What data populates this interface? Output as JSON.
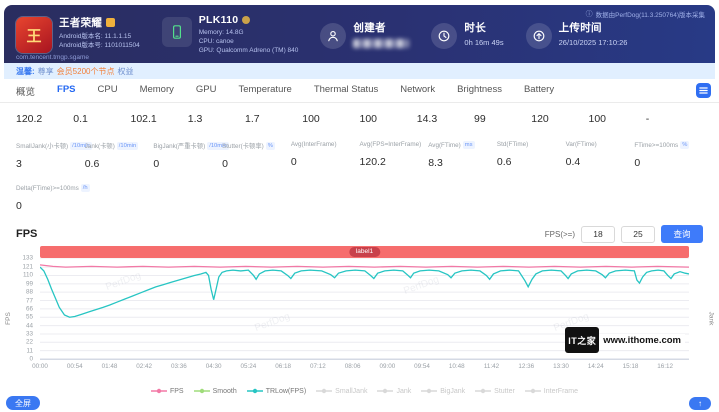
{
  "header": {
    "game": {
      "icon_glyph": "王",
      "title": "王者荣耀",
      "version_line1": "Android版本名: 11.1.1.15",
      "version_line2": "Android版本号: 1101011504",
      "package": "com.tencent.tmgp.sgame"
    },
    "device": {
      "model": "PLK110",
      "memory": "Memory: 14.8G",
      "cpu": "CPU: canoe",
      "gpu": "GPU: Qualcomm Adreno (TM) 840"
    },
    "creator_label": "创建者",
    "duration_label": "时长",
    "duration_value": "0h 16m 49s",
    "upload_label": "上传时间",
    "upload_value": "26/10/2025 17:10:26",
    "collector_note": "数据由PerfDog(11.3.250764)版本采集"
  },
  "notice": {
    "prefix": "温馨:",
    "text": "尊享",
    "highlight": "会员5200个节点",
    "suffix": "权益"
  },
  "tabs": {
    "items": [
      "概览",
      "FPS",
      "CPU",
      "Memory",
      "GPU",
      "Temperature",
      "Thermal Status",
      "Network",
      "Brightness",
      "Battery"
    ],
    "active_index": 1
  },
  "stats": {
    "row1": [
      "120.2",
      "0.1",
      "102.1",
      "1.3",
      "1.7",
      "100",
      "100",
      "14.3",
      "99",
      "120",
      "100",
      "-"
    ],
    "row2": [
      {
        "label": "SmallJank(小卡顿)",
        "unit": "/10min",
        "value": "3"
      },
      {
        "label": "Jank(卡顿)",
        "unit": "/10min",
        "value": "0.6"
      },
      {
        "label": "BigJank(严重卡顿)",
        "unit": "/10min",
        "value": "0"
      },
      {
        "label": "Stutter(卡顿率)",
        "unit": "%",
        "value": "0"
      },
      {
        "label": "Avg(InterFrame)",
        "unit": "",
        "value": "0"
      },
      {
        "label": "Avg(FPS=InterFrame)",
        "unit": "",
        "value": "120.2"
      },
      {
        "label": "Avg(FTime)",
        "unit": "ms",
        "value": "8.3"
      },
      {
        "label": "Std(FTime)",
        "unit": "",
        "value": "0.6"
      },
      {
        "label": "Var(FTime)",
        "unit": "",
        "value": "0.4"
      },
      {
        "label": "FTime>=100ms",
        "unit": "%",
        "value": "0"
      }
    ],
    "row3": {
      "label": "Delta(FTime)>=100ms",
      "unit": "/h",
      "value": "0"
    }
  },
  "fps_section": {
    "title": "FPS",
    "filter_label": "FPS(>=)",
    "input1": "18",
    "input2": "25",
    "query_button": "查询"
  },
  "chart_data": {
    "type": "line",
    "title": "FPS",
    "banner_label": "label1",
    "ylabel_left": "FPS",
    "ylabel_right": "Jank",
    "ylim": [
      0,
      133
    ],
    "y_ticks": [
      133,
      121,
      110,
      99,
      88,
      77,
      66,
      55,
      44,
      33,
      22,
      11,
      0
    ],
    "x_ticks": [
      "00:00",
      "00:54",
      "01:48",
      "02:42",
      "03:36",
      "04:30",
      "05:24",
      "06:18",
      "07:12",
      "08:06",
      "09:00",
      "09:54",
      "10:48",
      "11:42",
      "12:36",
      "13:30",
      "14:24",
      "15:18",
      "16:12"
    ],
    "x_tick_interval_s": 54,
    "x_max_s": 1009,
    "grid": true,
    "legend_position": "bottom",
    "series": [
      {
        "name": "FPS",
        "color": "#f279a6",
        "points": [
          [
            0,
            124
          ],
          [
            20,
            122
          ],
          [
            40,
            121
          ],
          [
            80,
            122
          ],
          [
            120,
            121
          ],
          [
            160,
            122
          ],
          [
            200,
            121
          ],
          [
            240,
            122
          ],
          [
            280,
            121
          ],
          [
            320,
            122
          ],
          [
            360,
            121
          ],
          [
            400,
            122
          ],
          [
            440,
            121
          ],
          [
            480,
            122
          ],
          [
            520,
            121
          ],
          [
            560,
            122
          ],
          [
            600,
            121
          ],
          [
            640,
            122
          ],
          [
            680,
            121
          ],
          [
            720,
            122
          ],
          [
            760,
            121
          ],
          [
            800,
            122
          ],
          [
            840,
            121
          ],
          [
            880,
            122
          ],
          [
            920,
            121
          ],
          [
            960,
            122
          ],
          [
            1009,
            121
          ]
        ]
      },
      {
        "name": "TRLow(FPS)",
        "color": "#27c5c3",
        "points": [
          [
            0,
            121
          ],
          [
            6,
            116
          ],
          [
            12,
            105
          ],
          [
            18,
            92
          ],
          [
            24,
            80
          ],
          [
            30,
            68
          ],
          [
            38,
            58
          ],
          [
            46,
            55
          ],
          [
            54,
            56
          ],
          [
            65,
            59
          ],
          [
            76,
            62
          ],
          [
            87,
            65
          ],
          [
            98,
            68
          ],
          [
            108,
            71
          ],
          [
            120,
            75
          ],
          [
            132,
            79
          ],
          [
            144,
            83
          ],
          [
            156,
            87
          ],
          [
            168,
            91
          ],
          [
            180,
            95
          ],
          [
            192,
            98
          ],
          [
            204,
            101
          ],
          [
            216,
            104
          ],
          [
            228,
            107
          ],
          [
            240,
            110
          ],
          [
            250,
            112
          ],
          [
            258,
            114
          ],
          [
            262,
            110
          ],
          [
            266,
            92
          ],
          [
            270,
            78
          ],
          [
            274,
            93
          ],
          [
            278,
            108
          ],
          [
            283,
            114
          ],
          [
            290,
            116
          ],
          [
            300,
            117
          ],
          [
            312,
            116
          ],
          [
            324,
            117
          ],
          [
            332,
            110
          ],
          [
            336,
            105
          ],
          [
            341,
            112
          ],
          [
            350,
            116
          ],
          [
            362,
            117
          ],
          [
            375,
            116
          ],
          [
            385,
            110
          ],
          [
            390,
            106
          ],
          [
            396,
            113
          ],
          [
            406,
            116
          ],
          [
            420,
            117
          ],
          [
            438,
            116
          ],
          [
            452,
            111
          ],
          [
            458,
            107
          ],
          [
            464,
            113
          ],
          [
            476,
            116
          ],
          [
            490,
            117
          ],
          [
            505,
            116
          ],
          [
            514,
            110
          ],
          [
            519,
            106
          ],
          [
            525,
            113
          ],
          [
            536,
            116
          ],
          [
            550,
            117
          ],
          [
            564,
            116
          ],
          [
            571,
            111
          ],
          [
            576,
            107
          ],
          [
            581,
            113
          ],
          [
            591,
            116
          ],
          [
            605,
            117
          ],
          [
            620,
            116
          ],
          [
            634,
            111
          ],
          [
            639,
            107
          ],
          [
            645,
            113
          ],
          [
            656,
            116
          ],
          [
            670,
            117
          ],
          [
            684,
            116
          ],
          [
            694,
            110
          ],
          [
            699,
            105
          ],
          [
            705,
            112
          ],
          [
            716,
            116
          ],
          [
            730,
            117
          ],
          [
            744,
            116
          ],
          [
            754,
            103
          ],
          [
            759,
            95
          ],
          [
            765,
            105
          ],
          [
            771,
            112
          ],
          [
            781,
            116
          ],
          [
            795,
            117
          ],
          [
            810,
            116
          ],
          [
            817,
            110
          ],
          [
            821,
            106
          ],
          [
            826,
            112
          ],
          [
            836,
            116
          ],
          [
            850,
            117
          ],
          [
            864,
            116
          ],
          [
            874,
            111
          ],
          [
            879,
            107
          ],
          [
            885,
            113
          ],
          [
            895,
            116
          ],
          [
            910,
            117
          ],
          [
            924,
            116
          ],
          [
            928,
            104
          ],
          [
            932,
            100
          ],
          [
            937,
            108
          ],
          [
            943,
            114
          ],
          [
            951,
            116
          ],
          [
            961,
            117
          ],
          [
            970,
            116
          ],
          [
            976,
            110
          ],
          [
            981,
            106
          ],
          [
            986,
            112
          ],
          [
            995,
            115
          ],
          [
            1003,
            113
          ],
          [
            1009,
            112
          ]
        ]
      }
    ]
  },
  "legend": {
    "items": [
      {
        "name": "FPS",
        "color": "#f279a6",
        "active": true
      },
      {
        "name": "Smooth",
        "color": "#9fdc7a",
        "active": true
      },
      {
        "name": "TRLow(FPS)",
        "color": "#27c5c3",
        "active": true
      },
      {
        "name": "SmallJank",
        "color": "#d9d9d9",
        "active": false
      },
      {
        "name": "Jank",
        "color": "#d9d9d9",
        "active": false
      },
      {
        "name": "BigJank",
        "color": "#d9d9d9",
        "active": false
      },
      {
        "name": "Stutter",
        "color": "#d9d9d9",
        "active": false
      },
      {
        "name": "InterFrame",
        "color": "#d9d9d9",
        "active": false
      }
    ]
  },
  "watermark": {
    "logo": "IT之家",
    "site": "www.ithome.com",
    "chart_watermark": "PerfDog"
  },
  "floating": {
    "fullscreen": "全屏",
    "to_top_icon": "↑"
  }
}
